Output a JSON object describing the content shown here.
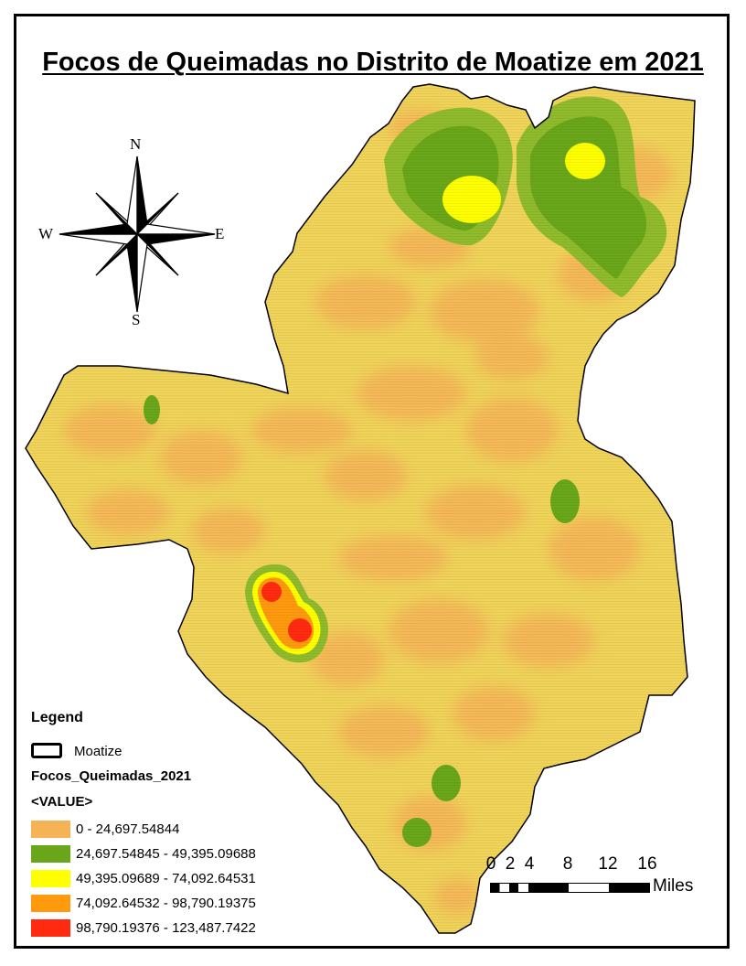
{
  "map": {
    "title": "Focos de Queimadas no Distrito de Moatize em 2021",
    "region": "Moatize",
    "compass": {
      "north": "N",
      "south": "S",
      "east": "E",
      "west": "W"
    }
  },
  "legend": {
    "title": "Legend",
    "boundary_label": "Moatize",
    "layer_name": "Focos_Queimadas_2021",
    "field_name": "<VALUE>",
    "classes": [
      {
        "label": "0 - 24,697.54844",
        "color": "#f5b356"
      },
      {
        "label": "24,697.54845 - 49,395.09688",
        "color": "#6aa61a"
      },
      {
        "label": "49,395.09689 - 74,092.64531",
        "color": "#ffff00"
      },
      {
        "label": "74,092.64532 - 98,790.19375",
        "color": "#ff9a0f"
      },
      {
        "label": "98,790.19376 - 123,487.7422",
        "color": "#ff2a10"
      }
    ]
  },
  "scalebar": {
    "ticks": [
      "0",
      "2",
      "4",
      "8",
      "12",
      "16"
    ],
    "unit": "Miles"
  },
  "colors": {
    "background_field": "#f0d45a",
    "low_value": "#f5b356",
    "medium_value": "#6aa61a",
    "high_value": "#ffff00",
    "very_high_value": "#ff9a0f",
    "extreme_value": "#ff2a10"
  }
}
